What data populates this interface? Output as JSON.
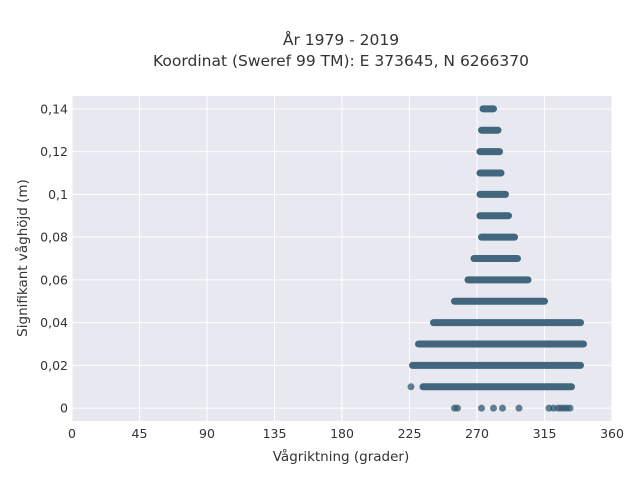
{
  "chart_data": {
    "type": "scatter",
    "title_line1": "År 1979 - 2019",
    "title_line2": "Koordinat (Sweref 99 TM): E 373645, N 6266370",
    "xlabel": "Vågriktning (grader)",
    "ylabel": "Signifikant våghöjd (m)",
    "xlim": [
      0,
      360
    ],
    "ylim": [
      -0.006,
      0.146
    ],
    "xticks": [
      0,
      45,
      90,
      135,
      180,
      225,
      270,
      315,
      360
    ],
    "yticks": [
      0,
      0.02,
      0.04,
      0.06,
      0.08,
      0.1,
      0.12,
      0.14
    ],
    "ytick_labels": [
      "0",
      "0,02",
      "0,04",
      "0,06",
      "0,08",
      "0,1",
      "0,12",
      "0,14"
    ],
    "grid": true,
    "marker_color": "#2f5870",
    "plot_background": "#e8e8f0",
    "bands": [
      {
        "y": 0.14,
        "x_min": 274,
        "x_max": 281
      },
      {
        "y": 0.13,
        "x_min": 273,
        "x_max": 284
      },
      {
        "y": 0.12,
        "x_min": 272,
        "x_max": 285
      },
      {
        "y": 0.11,
        "x_min": 272,
        "x_max": 286
      },
      {
        "y": 0.1,
        "x_min": 272,
        "x_max": 289
      },
      {
        "y": 0.09,
        "x_min": 272,
        "x_max": 291
      },
      {
        "y": 0.08,
        "x_min": 273,
        "x_max": 295
      },
      {
        "y": 0.07,
        "x_min": 268,
        "x_max": 297
      },
      {
        "y": 0.06,
        "x_min": 264,
        "x_max": 304
      },
      {
        "y": 0.05,
        "x_min": 255,
        "x_max": 315
      },
      {
        "y": 0.04,
        "x_min": 241,
        "x_max": 339
      },
      {
        "y": 0.03,
        "x_min": 231,
        "x_max": 341
      },
      {
        "y": 0.02,
        "x_min": 227,
        "x_max": 339
      },
      {
        "y": 0.01,
        "x_min": 234,
        "x_max": 333
      }
    ],
    "scattered_points": [
      {
        "x": 226,
        "y": 0.01
      },
      {
        "x": 255,
        "y": 0
      },
      {
        "x": 257,
        "y": 0
      },
      {
        "x": 273,
        "y": 0
      },
      {
        "x": 281,
        "y": 0
      },
      {
        "x": 287,
        "y": 0
      },
      {
        "x": 298,
        "y": 0
      },
      {
        "x": 318,
        "y": 0
      },
      {
        "x": 321,
        "y": 0
      },
      {
        "x": 324,
        "y": 0
      },
      {
        "x": 326,
        "y": 0
      },
      {
        "x": 328,
        "y": 0
      },
      {
        "x": 330,
        "y": 0
      },
      {
        "x": 332,
        "y": 0
      }
    ]
  }
}
